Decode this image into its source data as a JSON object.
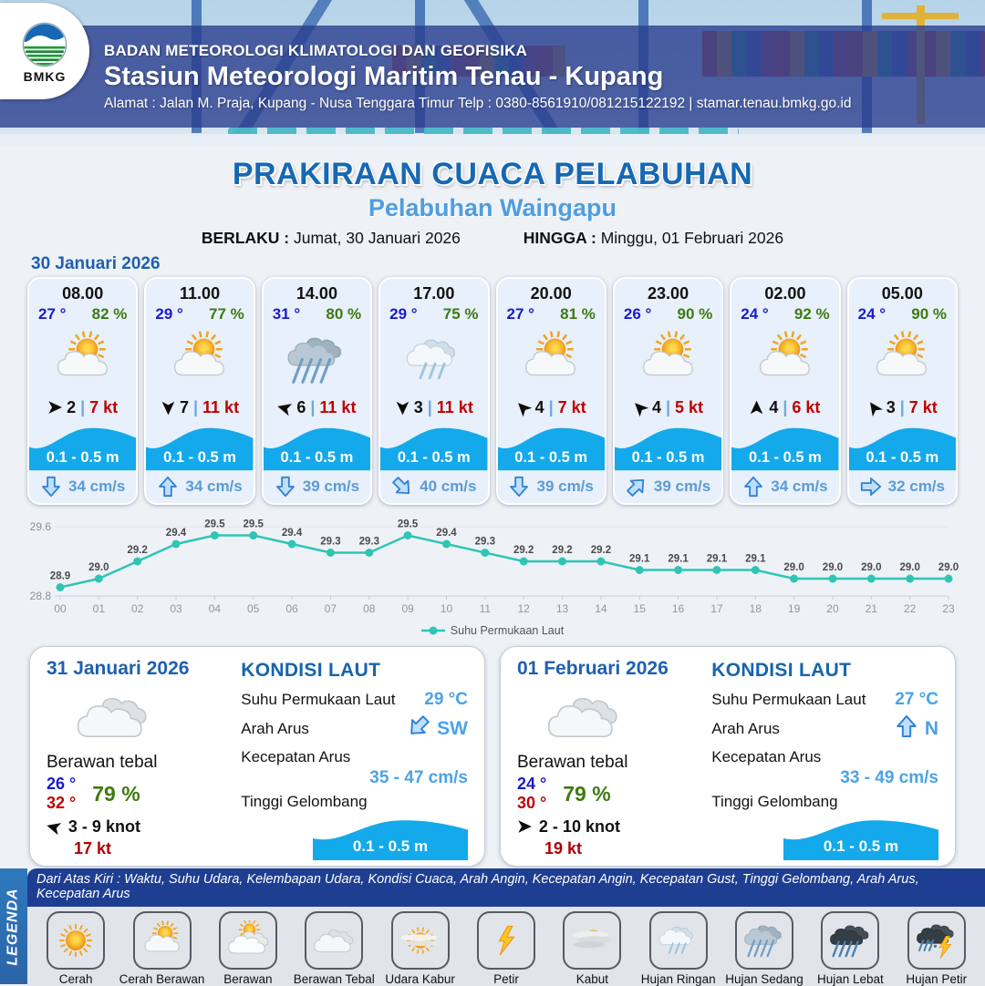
{
  "header": {
    "org": "BADAN METEOROLOGI KLIMATOLOGI DAN GEOFISIKA",
    "station": "Stasiun Meteorologi Maritim Tenau - Kupang",
    "address": "Alamat : Jalan M. Praja, Kupang - Nusa Tenggara Timur Telp : 0380-8561910/081215122192  | stamar.tenau.bmkg.go.id",
    "logo_text": "BMKG"
  },
  "title": {
    "main": "PRAKIRAAN CUACA PELABUHAN",
    "sub": "Pelabuhan Waingapu",
    "berlaku_label": "BERLAKU :",
    "berlaku_value": "Jumat, 30 Januari 2026",
    "hingga_label": "HINGGA :",
    "hingga_value": "Minggu, 01 Februari 2026"
  },
  "hourly": {
    "date": "30 Januari 2026",
    "sep": "|",
    "cards": [
      {
        "time": "08.00",
        "temp": "27 °",
        "humidity": "82 %",
        "icon": "cerah-berawan",
        "wind_dir_deg": 0,
        "wind_speed": "2",
        "gust": "7 kt",
        "wave": "0.1 - 0.5 m",
        "current_dir": "S",
        "current_speed": "34 cm/s"
      },
      {
        "time": "11.00",
        "temp": "29 °",
        "humidity": "77 %",
        "icon": "cerah-berawan",
        "wind_dir_deg": 90,
        "wind_speed": "7",
        "gust": "11 kt",
        "wave": "0.1 - 0.5 m",
        "current_dir": "N",
        "current_speed": "34 cm/s"
      },
      {
        "time": "14.00",
        "temp": "31 °",
        "humidity": "80 %",
        "icon": "hujan-sedang",
        "wind_dir_deg": 195,
        "wind_speed": "6",
        "gust": "11 kt",
        "wave": "0.1 - 0.5 m",
        "current_dir": "S",
        "current_speed": "39 cm/s"
      },
      {
        "time": "17.00",
        "temp": "29 °",
        "humidity": "75 %",
        "icon": "hujan-ringan",
        "wind_dir_deg": 90,
        "wind_speed": "3",
        "gust": "11 kt",
        "wave": "0.1 - 0.5 m",
        "current_dir": "SE",
        "current_speed": "40 cm/s"
      },
      {
        "time": "20.00",
        "temp": "27 °",
        "humidity": "81 %",
        "icon": "cerah-berawan",
        "wind_dir_deg": -135,
        "wind_speed": "4",
        "gust": "7 kt",
        "wave": "0.1 - 0.5 m",
        "current_dir": "S",
        "current_speed": "39 cm/s"
      },
      {
        "time": "23.00",
        "temp": "26 °",
        "humidity": "90 %",
        "icon": "cerah-berawan",
        "wind_dir_deg": -135,
        "wind_speed": "4",
        "gust": "5 kt",
        "wave": "0.1 - 0.5 m",
        "current_dir": "NE",
        "current_speed": "39 cm/s"
      },
      {
        "time": "02.00",
        "temp": "24 °",
        "humidity": "92 %",
        "icon": "cerah-berawan",
        "wind_dir_deg": -90,
        "wind_speed": "4",
        "gust": "6 kt",
        "wave": "0.1 - 0.5 m",
        "current_dir": "N",
        "current_speed": "34 cm/s"
      },
      {
        "time": "05.00",
        "temp": "24 °",
        "humidity": "90 %",
        "icon": "cerah-berawan",
        "wind_dir_deg": -125,
        "wind_speed": "3",
        "gust": "7 kt",
        "wave": "0.1 - 0.5 m",
        "current_dir": "E",
        "current_speed": "32 cm/s"
      }
    ]
  },
  "chart_data": {
    "type": "line",
    "categories": [
      "00",
      "01",
      "02",
      "03",
      "04",
      "05",
      "06",
      "07",
      "08",
      "09",
      "10",
      "11",
      "12",
      "13",
      "14",
      "15",
      "16",
      "17",
      "18",
      "19",
      "20",
      "21",
      "22",
      "23"
    ],
    "series": [
      {
        "name": "Suhu Permukaan Laut",
        "values": [
          28.9,
          29.0,
          29.2,
          29.4,
          29.5,
          29.5,
          29.4,
          29.3,
          29.3,
          29.5,
          29.4,
          29.3,
          29.2,
          29.2,
          29.2,
          29.1,
          29.1,
          29.1,
          29.1,
          29.0,
          29.0,
          29.0,
          29.0,
          29.0
        ]
      }
    ],
    "title": "",
    "xlabel": "",
    "ylabel": "",
    "ylim": [
      28.8,
      29.6
    ],
    "yticks": [
      "28.8",
      "29.6"
    ],
    "grid": true,
    "legend_position": "bottom",
    "line_color": "#2fc5b4"
  },
  "daily": [
    {
      "date": "31 Januari 2026",
      "icon": "berawan-tebal",
      "condition": "Berawan tebal",
      "temp_min": "26 °",
      "temp_max": "32 °",
      "humidity": "79 %",
      "wind_dir_deg": 195,
      "wind_range": "3  - 9 knot",
      "gust": "17 kt",
      "sea": {
        "title": "KONDISI LAUT",
        "sst_label": "Suhu Permukaan Laut",
        "sst": "29 °C",
        "current_dir_label": "Arah Arus",
        "current_dir": "SW",
        "current_speed_label": "Kecepatan Arus",
        "current_speed": "35 - 47 cm/s",
        "wave_label": "Tinggi Gelombang",
        "wave": "0.1 - 0.5 m"
      }
    },
    {
      "date": "01 Februari 2026",
      "icon": "berawan-tebal",
      "condition": "Berawan tebal",
      "temp_min": "24 °",
      "temp_max": "30 °",
      "humidity": "79 %",
      "wind_dir_deg": 0,
      "wind_range": "2  - 10 knot",
      "gust": "19 kt",
      "sea": {
        "title": "KONDISI LAUT",
        "sst_label": "Suhu Permukaan Laut",
        "sst": "27 °C",
        "current_dir_label": "Arah Arus",
        "current_dir": "N",
        "current_speed_label": "Kecepatan Arus",
        "current_speed": "33 - 49 cm/s",
        "wave_label": "Tinggi Gelombang",
        "wave": "0.1 - 0.5 m"
      }
    }
  ],
  "legend": {
    "sidebar": "LEGENDA",
    "caption": "Dari Atas Kiri : Waktu, Suhu Udara, Kelembapan Udara, Kondisi Cuaca, Arah Angin, Kecepatan Angin, Kecepatan Gust, Tinggi Gelombang, Arah Arus, Kecepatan Arus",
    "items": [
      {
        "label": "Cerah",
        "icon": "cerah"
      },
      {
        "label": "Cerah Berawan",
        "icon": "cerah-berawan"
      },
      {
        "label": "Berawan",
        "icon": "berawan"
      },
      {
        "label": "Berawan Tebal",
        "icon": "berawan-tebal"
      },
      {
        "label": "Udara Kabur",
        "icon": "udara-kabur"
      },
      {
        "label": "Petir",
        "icon": "petir"
      },
      {
        "label": "Kabut",
        "icon": "kabut"
      },
      {
        "label": "Hujan Ringan",
        "icon": "hujan-ringan"
      },
      {
        "label": "Hujan Sedang",
        "icon": "hujan-sedang"
      },
      {
        "label": "Hujan Lebat",
        "icon": "hujan-lebat"
      },
      {
        "label": "Hujan Petir",
        "icon": "hujan-petir"
      }
    ]
  },
  "colors": {
    "title_blue": "#1668b3",
    "subtitle_blue": "#4e9de0",
    "date_blue": "#1f5fb0",
    "temp_blue": "#1a1acd",
    "humidity_green": "#3f7a10",
    "gust_red": "#c00000",
    "wave_blue": "#14a9ea",
    "current_blue": "#5b9bd5",
    "chart_teal": "#2fc5b4",
    "legend_band_navy": "#1e3e92",
    "legend_sidebar_blue": "#2f79bd"
  }
}
